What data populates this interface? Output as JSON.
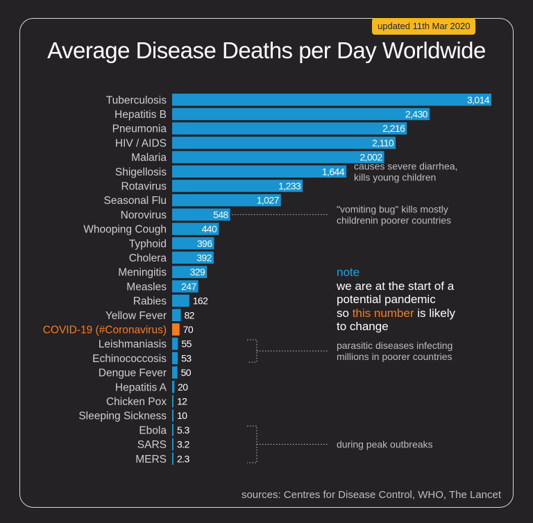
{
  "updated": "updated 11th Mar 2020",
  "title": "Average Disease Deaths per Day Worldwide",
  "sources": "sources: Centres for Disease Control, WHO, The Lancet",
  "colors": {
    "background": "#252225",
    "bar": "#1a94d0",
    "highlight": "#f47c20",
    "note_heading": "#1aa3e0",
    "badge": "#f6b91d"
  },
  "note": {
    "heading": "note",
    "line1": "we are at the start of a",
    "line2": "potential pandemic",
    "line3_pre": "so ",
    "line3_highlight": "this number",
    "line3_post": " is likely",
    "line4": "to change"
  },
  "chart_data": {
    "type": "bar",
    "orientation": "horizontal",
    "title": "Average Disease Deaths per Day Worldwide",
    "highlight_category": "COVID-19 (#Coronavirus)",
    "categories": [
      "Tuberculosis",
      "Hepatitis B",
      "Pneumonia",
      "HIV / AIDS",
      "Malaria",
      "Shigellosis",
      "Rotavirus",
      "Seasonal Flu",
      "Norovirus",
      "Whooping Cough",
      "Typhoid",
      "Cholera",
      "Meningitis",
      "Measles",
      "Rabies",
      "Yellow Fever",
      "COVID-19 (#Coronavirus)",
      "Leishmaniasis",
      "Echinococcosis",
      "Dengue Fever",
      "Hepatitis A",
      "Chicken Pox",
      "Sleeping Sickness",
      "Ebola",
      "SARS",
      "MERS"
    ],
    "values": [
      3014,
      2430,
      2216,
      2110,
      2002,
      1644,
      1233,
      1027,
      548,
      440,
      396,
      392,
      329,
      247,
      162,
      82,
      70,
      55,
      53,
      50,
      20,
      12,
      10,
      5.3,
      3.2,
      2.3
    ],
    "value_labels": [
      "3,014",
      "2,430",
      "2,216",
      "2,110",
      "2,002",
      "1,644",
      "1,233",
      "1,027",
      "548",
      "440",
      "396",
      "392",
      "329",
      "247",
      "162",
      "82",
      "70",
      "55",
      "53",
      "50",
      "20",
      "12",
      "10",
      "5.3",
      "3.2",
      "2.3"
    ],
    "xlim": [
      0,
      3014
    ],
    "annotations": [
      {
        "lines": [
          "causes severe diarrhea,",
          "kills young children"
        ],
        "category": "Shigellosis",
        "bracket": null
      },
      {
        "lines": [
          "\"vomiting bug\" kills mostly",
          "childrenin poorer countries"
        ],
        "category": "Norovirus",
        "bracket": [
          "Norovirus",
          "Norovirus"
        ]
      },
      {
        "lines": [
          "parasitic diseases infecting",
          "millions in poorer countries"
        ],
        "category": "Echinococcosis",
        "bracket": [
          "Leishmaniasis",
          "Echinococcosis"
        ]
      },
      {
        "lines": [
          "during peak outbreaks"
        ],
        "category": "SARS",
        "bracket": [
          "Ebola",
          "MERS"
        ]
      }
    ]
  }
}
